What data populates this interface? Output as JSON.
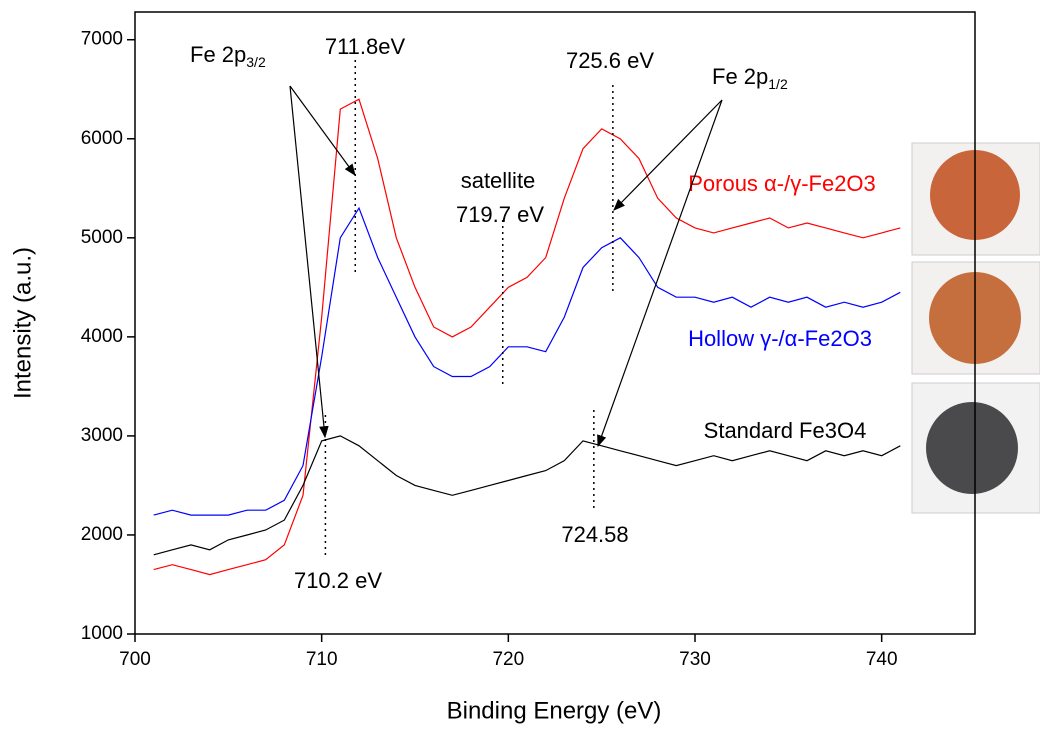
{
  "chart_data": {
    "type": "line",
    "x_label": "Binding Energy (eV)",
    "y_label": "Intensity (a.u.)",
    "x": [
      701,
      702,
      703,
      704,
      705,
      706,
      707,
      708,
      709,
      710,
      711,
      712,
      713,
      714,
      715,
      716,
      717,
      718,
      719,
      720,
      721,
      722,
      723,
      724,
      725,
      726,
      727,
      728,
      729,
      730,
      731,
      732,
      733,
      734,
      735,
      736,
      737,
      738,
      739,
      740,
      741
    ],
    "series": [
      {
        "name": "Porous α-/γ-Fe2O3",
        "color": "#ff0000",
        "values": [
          1650,
          1700,
          1650,
          1600,
          1650,
          1700,
          1750,
          1900,
          2400,
          4200,
          6300,
          6400,
          5800,
          5000,
          4500,
          4100,
          4000,
          4100,
          4300,
          4500,
          4600,
          4800,
          5400,
          5900,
          6100,
          6000,
          5800,
          5400,
          5200,
          5100,
          5050,
          5100,
          5150,
          5200,
          5100,
          5150,
          5100,
          5050,
          5000,
          5050,
          5100
        ]
      },
      {
        "name": "Hollow γ-/α-Fe2O3",
        "color": "#0000ff",
        "values": [
          2200,
          2250,
          2200,
          2200,
          2200,
          2250,
          2250,
          2350,
          2700,
          3800,
          5000,
          5300,
          4800,
          4400,
          4000,
          3700,
          3600,
          3600,
          3700,
          3900,
          3900,
          3850,
          4200,
          4700,
          4900,
          5000,
          4800,
          4500,
          4400,
          4400,
          4350,
          4400,
          4300,
          4400,
          4350,
          4400,
          4300,
          4350,
          4300,
          4350,
          4450
        ]
      },
      {
        "name": "Standard Fe3O4",
        "color": "#000000",
        "values": [
          1800,
          1850,
          1900,
          1850,
          1950,
          2000,
          2050,
          2150,
          2500,
          2950,
          3000,
          2900,
          2750,
          2600,
          2500,
          2450,
          2400,
          2450,
          2500,
          2550,
          2600,
          2650,
          2750,
          2950,
          2900,
          2850,
          2800,
          2750,
          2700,
          2750,
          2800,
          2750,
          2800,
          2850,
          2800,
          2750,
          2850,
          2800,
          2850,
          2800,
          2900
        ]
      }
    ],
    "xlim": [
      700,
      745
    ],
    "ylim": [
      1000,
      7280
    ],
    "xticks": [
      700,
      710,
      720,
      730,
      740
    ],
    "yticks": [
      1000,
      2000,
      3000,
      4000,
      5000,
      6000,
      7000
    ],
    "markers": [
      {
        "label": "711.8eV",
        "x": 711.8
      },
      {
        "label": "725.6 eV",
        "x": 725.6
      },
      {
        "label": "719.7 eV",
        "x": 719.7
      },
      {
        "label": "710.2 eV",
        "x": 710.2
      },
      {
        "label": "724.58",
        "x": 724.58
      }
    ],
    "annotations": [
      {
        "text": "Fe 2p",
        "sub": "3/2"
      },
      {
        "text": "Fe 2p",
        "sub": "1/2"
      },
      {
        "text": "satellite"
      }
    ]
  }
}
